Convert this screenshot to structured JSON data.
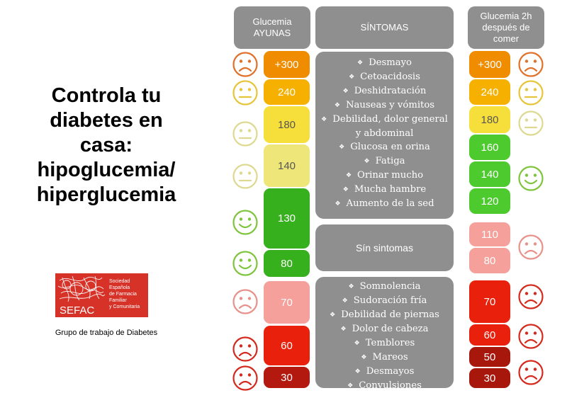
{
  "title_lines": [
    "Controla tu",
    "diabetes en",
    "casa:",
    "hipoglucemia/",
    "hiperglucemia"
  ],
  "logo": {
    "name": "SEFAC",
    "text_lines": [
      "Sociedad",
      "Española",
      "de Farmacia",
      "Familiar",
      "y Comunitaria"
    ],
    "accent_color": "#d63228"
  },
  "logo_caption": "Grupo de trabajo de  Diabetes",
  "headers": {
    "fasting_line1": "Glucemia",
    "fasting_line2": "AYUNAS",
    "symptoms": "SÍNTOMAS",
    "after_line1": "Glucemia 2h",
    "after_line2": "después de",
    "after_line3": "comer"
  },
  "fasting_values": [
    {
      "label": "+300",
      "color": "#f08c00"
    },
    {
      "label": "240",
      "color": "#f5b000"
    },
    {
      "label": "180",
      "color": "#f7df3b"
    },
    {
      "label": "140",
      "color": "#efe67a"
    },
    {
      "label": "130",
      "color": "#37b01d"
    },
    {
      "label": "80",
      "color": "#37b01d"
    },
    {
      "label": "70",
      "color": "#f5a09a"
    },
    {
      "label": "60",
      "color": "#e8200c"
    },
    {
      "label": "30",
      "color": "#b3190f"
    }
  ],
  "after_values": [
    {
      "label": "+300",
      "color": "#f08c00"
    },
    {
      "label": "240",
      "color": "#f5b000"
    },
    {
      "label": "180",
      "color": "#f7df3b"
    },
    {
      "label": "160",
      "color": "#4cca2e"
    },
    {
      "label": "140",
      "color": "#4cca2e"
    },
    {
      "label": "120",
      "color": "#4cca2e"
    },
    {
      "label": "110",
      "color": "#f5a09a"
    },
    {
      "label": "80",
      "color": "#f5a09a"
    },
    {
      "label": "70",
      "color": "#e8200c"
    },
    {
      "label": "60",
      "color": "#e8200c"
    },
    {
      "label": "50",
      "color": "#a8170c"
    },
    {
      "label": "30",
      "color": "#a8170c"
    }
  ],
  "symptoms_high": [
    "Desmayo",
    "Cetoacidosis",
    "Deshidratación",
    "Nauseas y vómitos",
    "Debilidad, dolor general",
    "y abdominal",
    "Glucosa en orina",
    "Fatiga",
    "Orinar mucho",
    "Mucha hambre",
    "Aumento de la sed"
  ],
  "symptoms_none": "Sín sintomas",
  "symptoms_low": [
    "Somnolencia",
    "Sudoración fría",
    "Debilidad de piernas",
    "Dolor de cabeza",
    "Temblores",
    "Mareos",
    "Desmayos",
    "Convulsiones"
  ],
  "faces": {
    "sad_orange": "#e0702a",
    "neutral_yellow": "#e6c53a",
    "neutral_pale": "#ddd990",
    "happy_green": "#7fc43d",
    "sad_pink": "#e8908a",
    "sad_red": "#d42a1e"
  }
}
